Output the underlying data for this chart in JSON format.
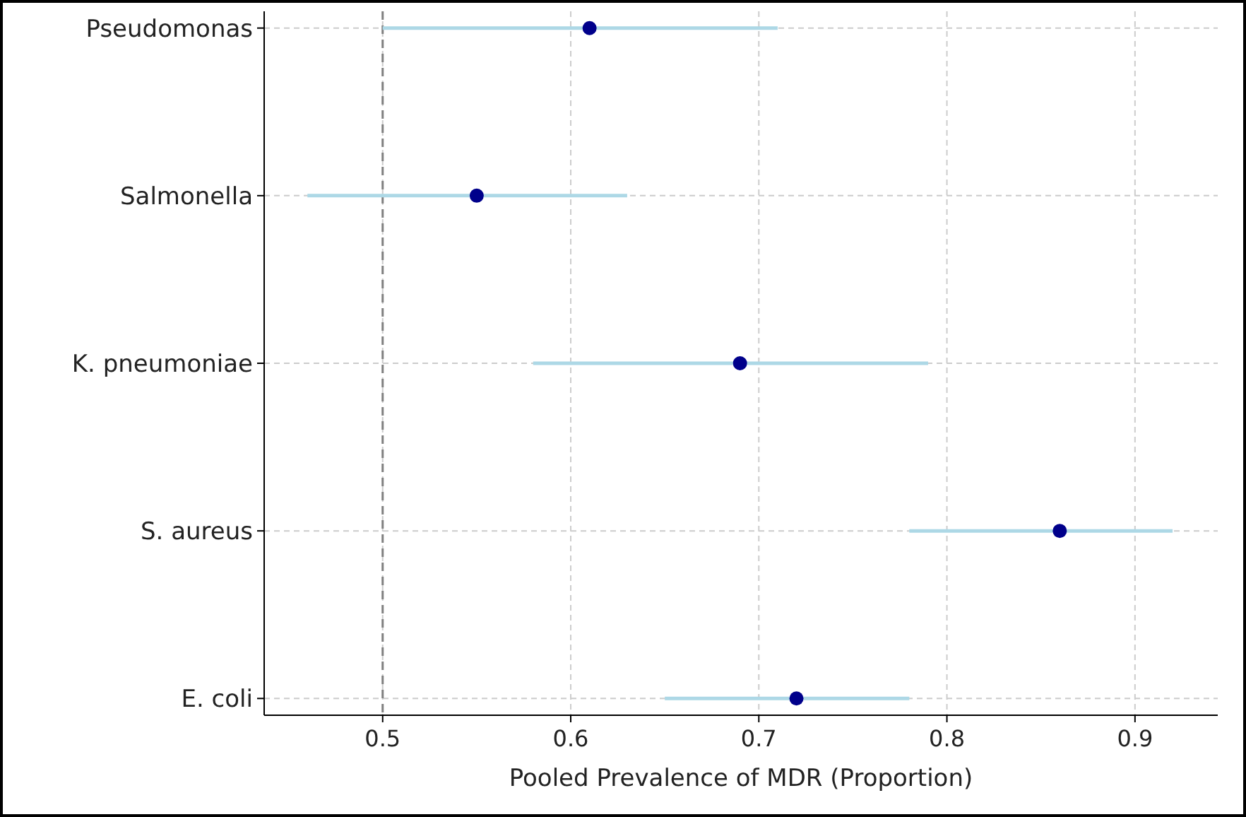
{
  "chart_data": {
    "type": "scatter",
    "orientation": "horizontal",
    "xlabel": "Pooled Prevalence of MDR (Proportion)",
    "categories": [
      "Pseudomonas",
      "Salmonella",
      "K. pneumoniae",
      "S. aureus",
      "E. coli"
    ],
    "series": [
      {
        "color": "#00008b",
        "values": [
          0.61,
          0.55,
          0.69,
          0.86,
          0.72
        ],
        "errors": [
          [
            0.5,
            0.71
          ],
          [
            0.46,
            0.63
          ],
          [
            0.58,
            0.79
          ],
          [
            0.78,
            0.92
          ],
          [
            0.65,
            0.78
          ]
        ]
      }
    ],
    "xlim": [
      0.437,
      0.944
    ],
    "xticks": [
      0.5,
      0.6,
      0.7,
      0.8,
      0.9
    ],
    "grid": true,
    "marker": "circle",
    "ref_lines": [
      {
        "axis": "x",
        "value": 0.5,
        "color": "#808080",
        "line_style": "dashed"
      }
    ]
  }
}
